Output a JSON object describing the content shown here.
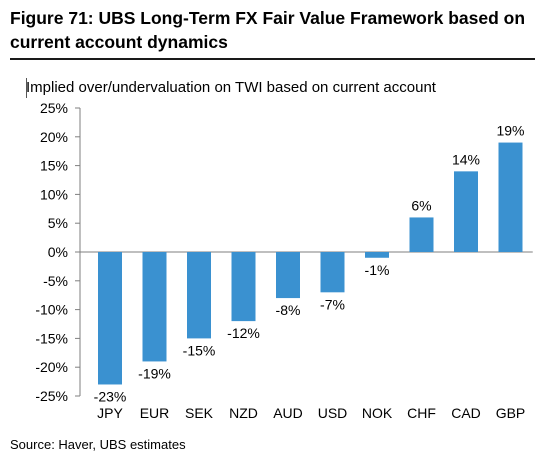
{
  "title": "Figure 71: UBS Long-Term FX Fair Value Framework based on current account dynamics",
  "subtitle": "Implied over/undervaluation on TWI based on current account",
  "source": "Source: Haver, UBS estimates",
  "colors": {
    "bar": "#3a91d0",
    "axis": "#7f7f7f"
  },
  "chart_data": {
    "type": "bar",
    "title": "Implied over/undervaluation on TWI based on current account",
    "categories": [
      "JPY",
      "EUR",
      "SEK",
      "NZD",
      "AUD",
      "USD",
      "NOK",
      "CHF",
      "CAD",
      "GBP"
    ],
    "values": [
      -23,
      -19,
      -15,
      -12,
      -8,
      -7,
      -1,
      6,
      14,
      19
    ],
    "data_labels": [
      "-23%",
      "-19%",
      "-15%",
      "-12%",
      "-8%",
      "-7%",
      "-1%",
      "6%",
      "14%",
      "19%"
    ],
    "ylim": [
      -25,
      25
    ],
    "yticks": [
      25,
      20,
      15,
      10,
      5,
      0,
      -5,
      -10,
      -15,
      -20,
      -25
    ],
    "ytick_labels": [
      "25%",
      "20%",
      "15%",
      "10%",
      "5%",
      "0%",
      "-5%",
      "-10%",
      "-15%",
      "-20%",
      "-25%"
    ],
    "grid": false,
    "legend": "none"
  }
}
